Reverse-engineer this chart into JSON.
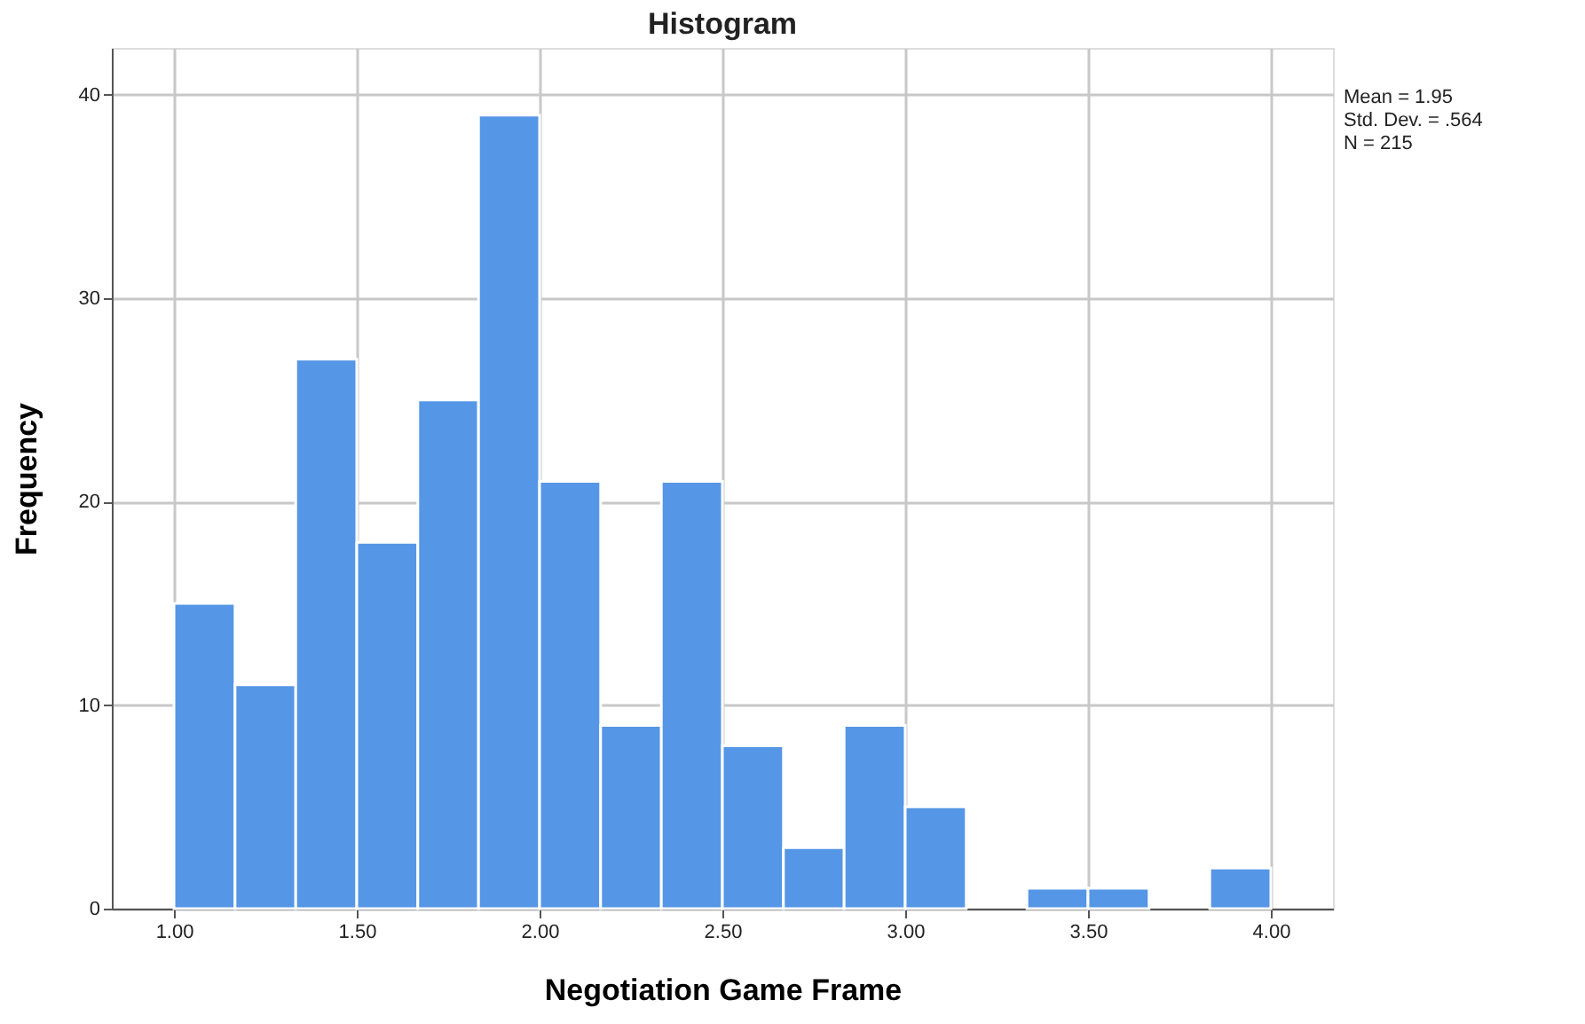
{
  "chart_data": {
    "type": "histogram",
    "title": "Histogram",
    "xlabel": "Negotiation Game Frame",
    "ylabel": "Frequency",
    "bins": [
      1.0,
      1.167,
      1.333,
      1.5,
      1.667,
      1.833,
      2.0,
      2.167,
      2.333,
      2.5,
      2.667,
      2.833,
      3.0,
      3.167,
      3.333,
      3.5,
      3.667,
      3.833,
      4.0
    ],
    "values": [
      15,
      11,
      27,
      18,
      25,
      39,
      21,
      9,
      21,
      8,
      3,
      9,
      5,
      0,
      1,
      1,
      0,
      2
    ],
    "color": "#5596e6",
    "xlim": [
      0.83,
      4.17
    ],
    "xticks": [
      {
        "value": 1,
        "label": "1.00"
      },
      {
        "value": 1.5,
        "label": "1.50"
      },
      {
        "value": 2,
        "label": "2.00"
      },
      {
        "value": 2.5,
        "label": "2.50"
      },
      {
        "value": 3,
        "label": "3.00"
      },
      {
        "value": 3.5,
        "label": "3.50"
      },
      {
        "value": 4,
        "label": "4.00"
      }
    ],
    "ylim": [
      0,
      42.3
    ],
    "yticks": [
      0,
      10,
      20,
      30,
      40
    ],
    "grid": true,
    "annotations": [
      "Mean = 1.95",
      "Std. Dev. = .564",
      "N = 215"
    ]
  }
}
